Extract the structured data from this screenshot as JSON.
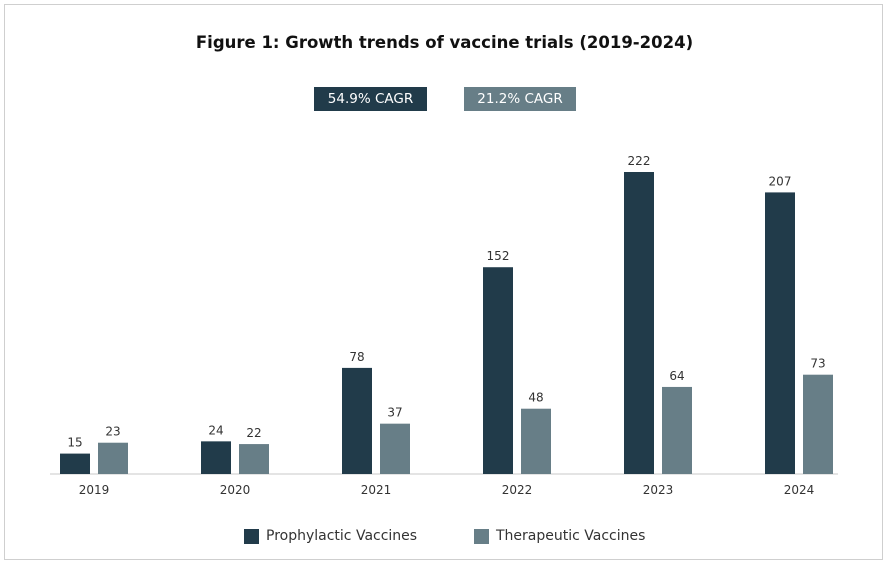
{
  "chart_data": {
    "type": "bar",
    "title": "Figure 1: Growth trends of vaccine trials (2019-2024)",
    "categories": [
      "2019",
      "2020",
      "2021",
      "2022",
      "2023",
      "2024"
    ],
    "series": [
      {
        "name": "Prophylactic Vaccines",
        "values": [
          15,
          24,
          78,
          152,
          222,
          207
        ],
        "color": "#213b4a"
      },
      {
        "name": "Therapeutic Vaccines",
        "values": [
          23,
          22,
          37,
          48,
          64,
          73
        ],
        "color": "#677e87"
      }
    ],
    "badges": [
      {
        "label": "54.9% CAGR",
        "color": "#213b4a"
      },
      {
        "label": "21.2% CAGR",
        "color": "#677e87"
      }
    ],
    "ylim": [
      0,
      222
    ],
    "grid": false,
    "legend_position": "bottom"
  }
}
